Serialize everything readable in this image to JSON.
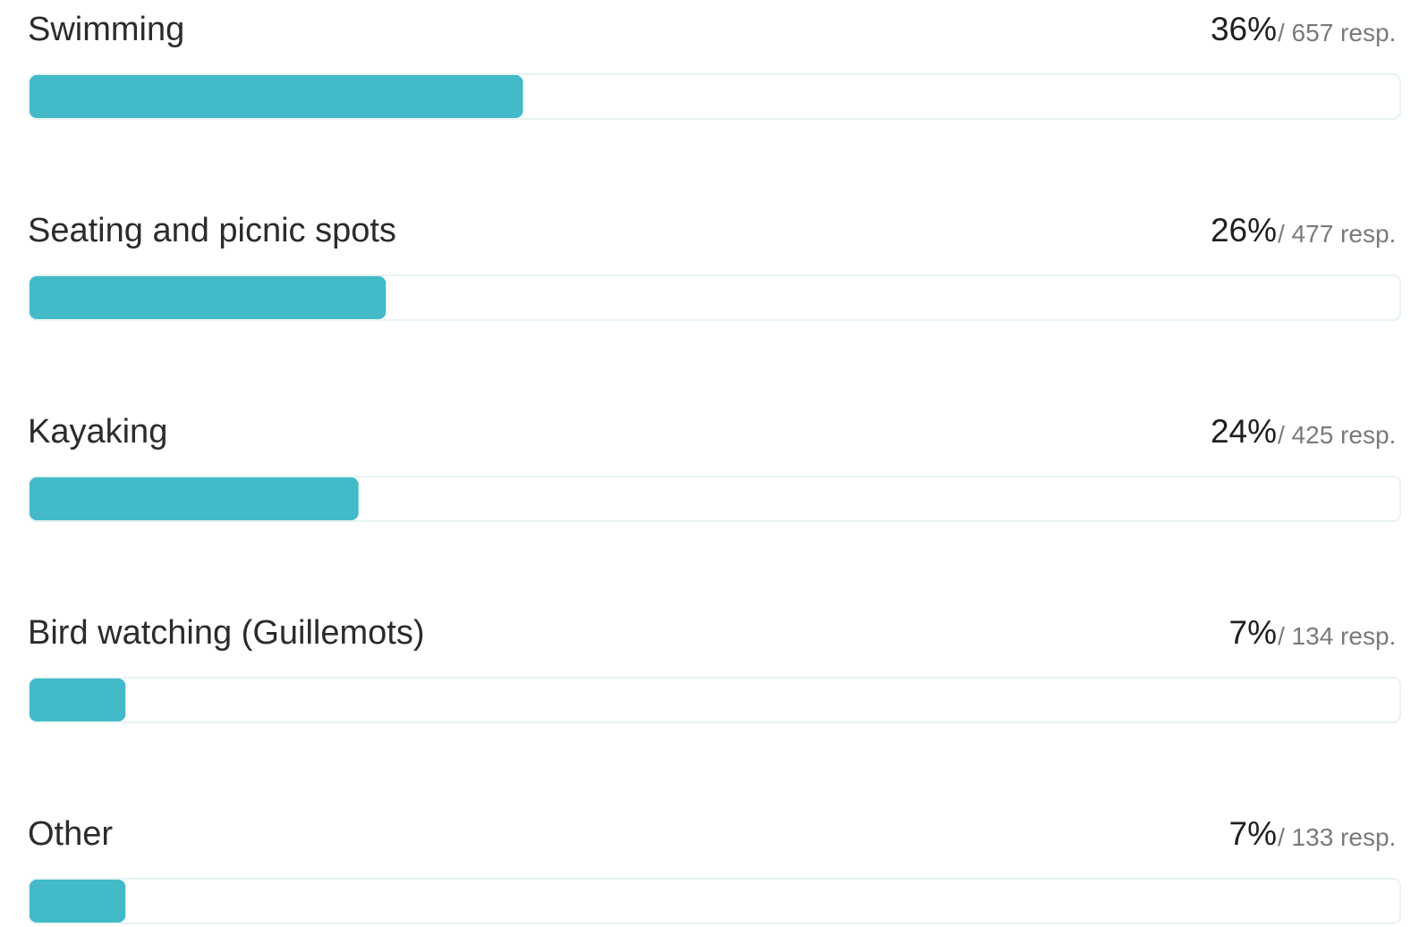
{
  "chart_data": {
    "type": "bar",
    "orientation": "horizontal",
    "categories": [
      "Swimming",
      "Seating and picnic spots",
      "Kayaking",
      "Bird watching (Guillemots)",
      "Other"
    ],
    "values": [
      36,
      26,
      24,
      7,
      7
    ],
    "value_labels": [
      "36%",
      "26%",
      "24%",
      "7%",
      "7%"
    ],
    "counts": [
      657,
      477,
      425,
      134,
      133
    ],
    "count_labels": [
      "/ 657 resp.",
      "/ 477 resp.",
      "/ 425 resp.",
      "/ 134 resp.",
      "/ 133 resp."
    ],
    "color": "#42bac8",
    "xlim": [
      0,
      100
    ]
  }
}
